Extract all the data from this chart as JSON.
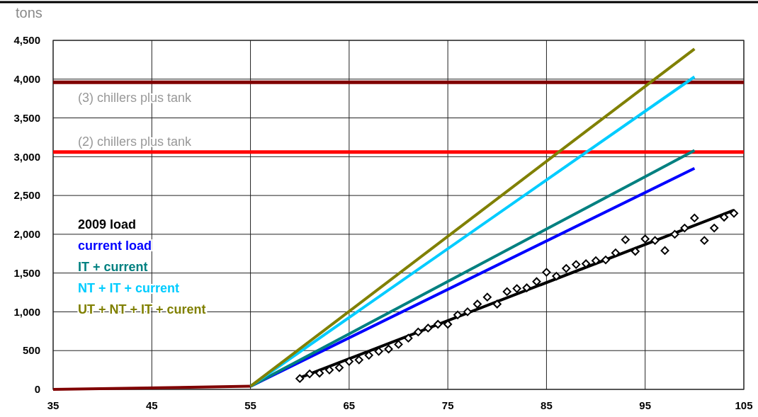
{
  "chart_data": {
    "type": "line",
    "ylabel": "tons",
    "xlim": [
      35,
      105
    ],
    "xticks": [
      35,
      45,
      55,
      65,
      75,
      85,
      95,
      105
    ],
    "ylim": [
      0,
      4500
    ],
    "yticks": [
      {
        "value": 0,
        "label": "0"
      },
      {
        "value": 500,
        "label": "500"
      },
      {
        "value": 1000,
        "label": "1,000"
      },
      {
        "value": 1500,
        "label": "1,500"
      },
      {
        "value": 2000,
        "label": "2,000"
      },
      {
        "value": 2500,
        "label": "2,500"
      },
      {
        "value": 3000,
        "label": "3,000"
      },
      {
        "value": 3500,
        "label": "3,500"
      },
      {
        "value": 4000,
        "label": "4,000"
      },
      {
        "value": 4500,
        "label": "4,500"
      }
    ],
    "grid": true,
    "legend": "left",
    "line_style": "solid",
    "ref_lines": [
      {
        "axis": "y",
        "value": 3960,
        "label": "(3) chillers plus tank",
        "color": "#800000"
      },
      {
        "axis": "y",
        "value": 3060,
        "label": "(2) chillers plus tank",
        "color": "#ff0000"
      }
    ],
    "series": [
      {
        "color": "#800000",
        "x": [
          35,
          55
        ],
        "values": [
          0,
          40
        ]
      },
      {
        "type": "scatter",
        "marker": "diamond",
        "color": "#000000",
        "x": [
          60,
          61,
          62,
          63,
          64,
          65,
          66,
          67,
          68,
          69,
          70,
          71,
          72,
          73,
          74,
          75,
          76,
          77,
          78,
          79,
          80,
          81,
          82,
          83,
          84,
          85,
          86,
          87,
          88,
          89,
          90,
          91,
          92,
          93,
          94,
          95,
          96,
          97,
          98,
          99,
          100,
          101,
          102,
          103,
          104
        ],
        "values": [
          140,
          200,
          210,
          250,
          280,
          360,
          380,
          440,
          490,
          520,
          580,
          660,
          740,
          790,
          840,
          840,
          960,
          1000,
          1100,
          1190,
          1100,
          1260,
          1300,
          1310,
          1390,
          1510,
          1460,
          1560,
          1610,
          1620,
          1660,
          1670,
          1760,
          1930,
          1780,
          1940,
          1920,
          1790,
          2000,
          2080,
          2210,
          1920,
          2080,
          2220,
          2270
        ]
      },
      {
        "name": "2009 load",
        "color": "#000000",
        "x": [
          60,
          104
        ],
        "values": [
          150,
          2310
        ]
      },
      {
        "name": "current load",
        "color": "#0000ff",
        "x": [
          55,
          100
        ],
        "values": [
          40,
          2850
        ]
      },
      {
        "name": "IT + current",
        "color": "#008080",
        "x": [
          55,
          100
        ],
        "values": [
          40,
          3080
        ]
      },
      {
        "name": "NT + IT + current",
        "color": "#00ccff",
        "x": [
          55,
          100
        ],
        "values": [
          40,
          4030
        ]
      },
      {
        "name": "UT + NT + IT + curent",
        "color": "#808000",
        "x": [
          55,
          100
        ],
        "values": [
          40,
          4390
        ]
      }
    ]
  }
}
